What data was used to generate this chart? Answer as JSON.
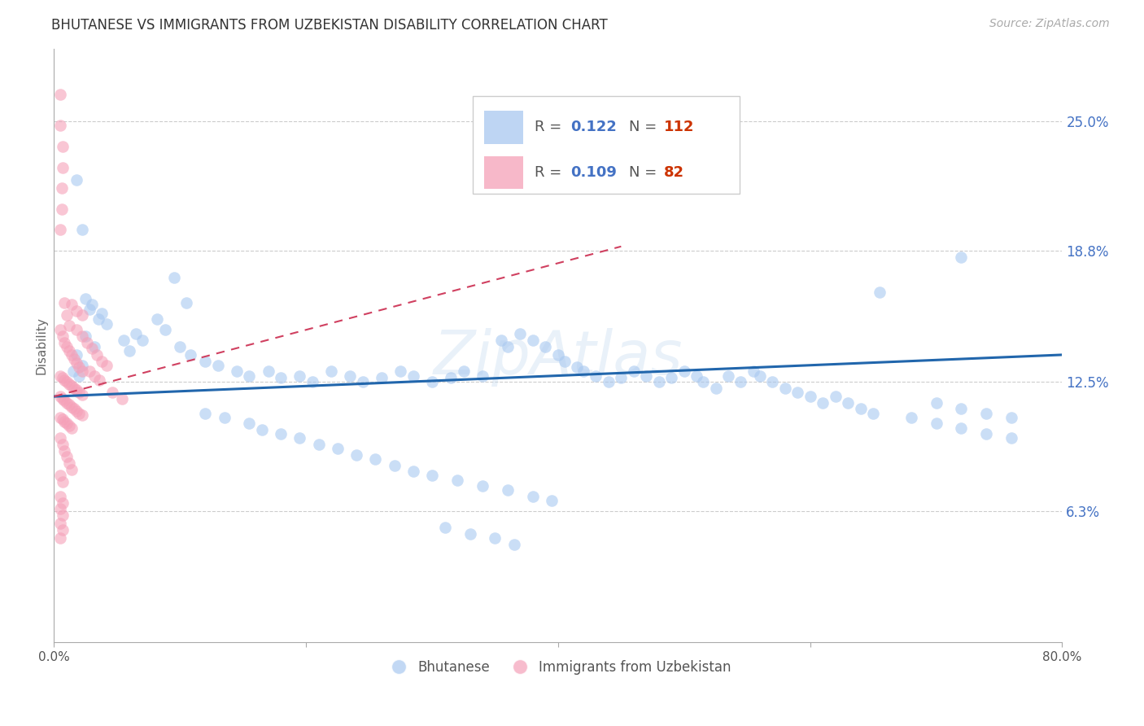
{
  "title": "BHUTANESE VS IMMIGRANTS FROM UZBEKISTAN DISABILITY CORRELATION CHART",
  "source": "Source: ZipAtlas.com",
  "ylabel": "Disability",
  "ytick_labels": [
    "25.0%",
    "18.8%",
    "12.5%",
    "6.3%"
  ],
  "ytick_values": [
    0.25,
    0.188,
    0.125,
    0.063
  ],
  "xmin": 0.0,
  "xmax": 0.8,
  "ymin": 0.0,
  "ymax": 0.285,
  "blue_color": "#a8c8f0",
  "pink_color": "#f5a0b8",
  "blue_line_color": "#2166ac",
  "pink_line_color": "#d04060",
  "blue_scatter": [
    [
      0.018,
      0.222
    ],
    [
      0.022,
      0.198
    ],
    [
      0.095,
      0.175
    ],
    [
      0.105,
      0.163
    ],
    [
      0.038,
      0.158
    ],
    [
      0.042,
      0.153
    ],
    [
      0.082,
      0.155
    ],
    [
      0.088,
      0.15
    ],
    [
      0.025,
      0.147
    ],
    [
      0.032,
      0.142
    ],
    [
      0.028,
      0.16
    ],
    [
      0.035,
      0.155
    ],
    [
      0.018,
      0.138
    ],
    [
      0.022,
      0.133
    ],
    [
      0.055,
      0.145
    ],
    [
      0.06,
      0.14
    ],
    [
      0.015,
      0.13
    ],
    [
      0.02,
      0.128
    ],
    [
      0.025,
      0.165
    ],
    [
      0.03,
      0.162
    ],
    [
      0.065,
      0.148
    ],
    [
      0.07,
      0.145
    ],
    [
      0.1,
      0.142
    ],
    [
      0.108,
      0.138
    ],
    [
      0.12,
      0.135
    ],
    [
      0.13,
      0.133
    ],
    [
      0.145,
      0.13
    ],
    [
      0.155,
      0.128
    ],
    [
      0.17,
      0.13
    ],
    [
      0.18,
      0.127
    ],
    [
      0.195,
      0.128
    ],
    [
      0.205,
      0.125
    ],
    [
      0.22,
      0.13
    ],
    [
      0.235,
      0.128
    ],
    [
      0.245,
      0.125
    ],
    [
      0.26,
      0.127
    ],
    [
      0.275,
      0.13
    ],
    [
      0.285,
      0.128
    ],
    [
      0.3,
      0.125
    ],
    [
      0.315,
      0.127
    ],
    [
      0.325,
      0.13
    ],
    [
      0.34,
      0.128
    ],
    [
      0.355,
      0.145
    ],
    [
      0.36,
      0.142
    ],
    [
      0.37,
      0.148
    ],
    [
      0.38,
      0.145
    ],
    [
      0.39,
      0.142
    ],
    [
      0.4,
      0.138
    ],
    [
      0.405,
      0.135
    ],
    [
      0.415,
      0.132
    ],
    [
      0.42,
      0.13
    ],
    [
      0.43,
      0.128
    ],
    [
      0.44,
      0.125
    ],
    [
      0.45,
      0.127
    ],
    [
      0.46,
      0.13
    ],
    [
      0.47,
      0.128
    ],
    [
      0.48,
      0.125
    ],
    [
      0.49,
      0.127
    ],
    [
      0.5,
      0.13
    ],
    [
      0.51,
      0.128
    ],
    [
      0.515,
      0.125
    ],
    [
      0.525,
      0.122
    ],
    [
      0.535,
      0.128
    ],
    [
      0.545,
      0.125
    ],
    [
      0.555,
      0.13
    ],
    [
      0.56,
      0.128
    ],
    [
      0.57,
      0.125
    ],
    [
      0.58,
      0.122
    ],
    [
      0.59,
      0.12
    ],
    [
      0.6,
      0.118
    ],
    [
      0.61,
      0.115
    ],
    [
      0.62,
      0.118
    ],
    [
      0.63,
      0.115
    ],
    [
      0.64,
      0.112
    ],
    [
      0.12,
      0.11
    ],
    [
      0.135,
      0.108
    ],
    [
      0.155,
      0.105
    ],
    [
      0.165,
      0.102
    ],
    [
      0.18,
      0.1
    ],
    [
      0.195,
      0.098
    ],
    [
      0.21,
      0.095
    ],
    [
      0.225,
      0.093
    ],
    [
      0.24,
      0.09
    ],
    [
      0.255,
      0.088
    ],
    [
      0.27,
      0.085
    ],
    [
      0.285,
      0.082
    ],
    [
      0.3,
      0.08
    ],
    [
      0.32,
      0.078
    ],
    [
      0.34,
      0.075
    ],
    [
      0.36,
      0.073
    ],
    [
      0.38,
      0.07
    ],
    [
      0.395,
      0.068
    ],
    [
      0.31,
      0.055
    ],
    [
      0.33,
      0.052
    ],
    [
      0.35,
      0.05
    ],
    [
      0.365,
      0.047
    ],
    [
      0.655,
      0.168
    ],
    [
      0.7,
      0.115
    ],
    [
      0.72,
      0.112
    ],
    [
      0.74,
      0.11
    ],
    [
      0.76,
      0.108
    ],
    [
      0.65,
      0.11
    ],
    [
      0.68,
      0.108
    ],
    [
      0.7,
      0.105
    ],
    [
      0.72,
      0.103
    ],
    [
      0.74,
      0.1
    ],
    [
      0.76,
      0.098
    ],
    [
      0.72,
      0.185
    ]
  ],
  "pink_scatter": [
    [
      0.005,
      0.263
    ],
    [
      0.005,
      0.248
    ],
    [
      0.007,
      0.238
    ],
    [
      0.007,
      0.228
    ],
    [
      0.006,
      0.218
    ],
    [
      0.006,
      0.208
    ],
    [
      0.005,
      0.198
    ],
    [
      0.008,
      0.163
    ],
    [
      0.01,
      0.157
    ],
    [
      0.012,
      0.152
    ],
    [
      0.005,
      0.15
    ],
    [
      0.007,
      0.147
    ],
    [
      0.008,
      0.144
    ],
    [
      0.01,
      0.142
    ],
    [
      0.012,
      0.14
    ],
    [
      0.014,
      0.138
    ],
    [
      0.016,
      0.136
    ],
    [
      0.018,
      0.134
    ],
    [
      0.02,
      0.132
    ],
    [
      0.022,
      0.13
    ],
    [
      0.005,
      0.128
    ],
    [
      0.007,
      0.127
    ],
    [
      0.008,
      0.126
    ],
    [
      0.01,
      0.125
    ],
    [
      0.012,
      0.124
    ],
    [
      0.014,
      0.123
    ],
    [
      0.016,
      0.122
    ],
    [
      0.018,
      0.121
    ],
    [
      0.02,
      0.12
    ],
    [
      0.022,
      0.119
    ],
    [
      0.005,
      0.118
    ],
    [
      0.007,
      0.117
    ],
    [
      0.008,
      0.116
    ],
    [
      0.01,
      0.115
    ],
    [
      0.012,
      0.114
    ],
    [
      0.014,
      0.113
    ],
    [
      0.016,
      0.112
    ],
    [
      0.018,
      0.111
    ],
    [
      0.02,
      0.11
    ],
    [
      0.022,
      0.109
    ],
    [
      0.005,
      0.108
    ],
    [
      0.007,
      0.107
    ],
    [
      0.008,
      0.106
    ],
    [
      0.01,
      0.105
    ],
    [
      0.012,
      0.104
    ],
    [
      0.014,
      0.103
    ],
    [
      0.005,
      0.098
    ],
    [
      0.007,
      0.095
    ],
    [
      0.008,
      0.092
    ],
    [
      0.01,
      0.089
    ],
    [
      0.012,
      0.086
    ],
    [
      0.014,
      0.083
    ],
    [
      0.005,
      0.08
    ],
    [
      0.007,
      0.077
    ],
    [
      0.005,
      0.07
    ],
    [
      0.007,
      0.067
    ],
    [
      0.005,
      0.064
    ],
    [
      0.007,
      0.061
    ],
    [
      0.005,
      0.057
    ],
    [
      0.007,
      0.054
    ],
    [
      0.005,
      0.05
    ],
    [
      0.018,
      0.15
    ],
    [
      0.022,
      0.147
    ],
    [
      0.026,
      0.144
    ],
    [
      0.03,
      0.141
    ],
    [
      0.034,
      0.138
    ],
    [
      0.038,
      0.135
    ],
    [
      0.042,
      0.133
    ],
    [
      0.014,
      0.162
    ],
    [
      0.018,
      0.159
    ],
    [
      0.022,
      0.157
    ],
    [
      0.028,
      0.13
    ],
    [
      0.032,
      0.128
    ],
    [
      0.036,
      0.126
    ],
    [
      0.046,
      0.12
    ],
    [
      0.054,
      0.117
    ]
  ],
  "blue_line": [
    [
      0.0,
      0.118
    ],
    [
      0.8,
      0.138
    ]
  ],
  "pink_line": [
    [
      0.0,
      0.118
    ],
    [
      0.45,
      0.19
    ]
  ]
}
